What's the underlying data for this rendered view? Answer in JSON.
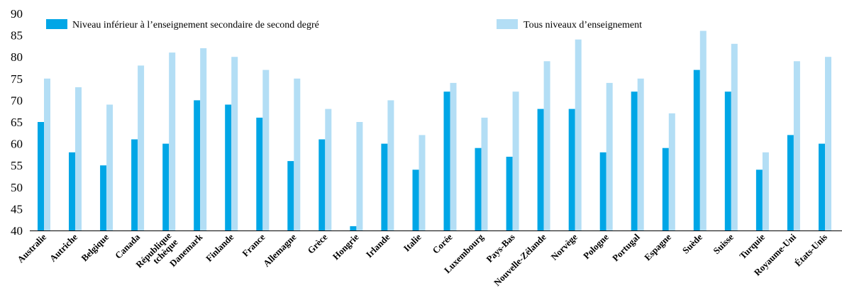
{
  "chart_data": {
    "type": "bar",
    "categories": [
      "Australie",
      "Autriche",
      "Belgique",
      "Canada",
      "République tchèque",
      "Danemark",
      "Finlande",
      "France",
      "Allemagne",
      "Grèce",
      "Hongrie",
      "Irlande",
      "Italie",
      "Corée",
      "Luxembourg",
      "Pays-Bas",
      "Nouvelle-Zélande",
      "Norvège",
      "Pologne",
      "Portugal",
      "Espagne",
      "Suède",
      "Suisse",
      "Turquie",
      "Royaume-Uni",
      "États-Unis"
    ],
    "series": [
      {
        "name": "Niveau inférieur à l’enseignement secondaire de second degré",
        "color": "#00a6e6",
        "values": [
          65,
          58,
          55,
          61,
          60,
          70,
          69,
          66,
          56,
          61,
          41,
          60,
          54,
          72,
          59,
          57,
          68,
          68,
          58,
          72,
          59,
          77,
          72,
          54,
          62,
          60
        ]
      },
      {
        "name": "Tous niveaux d’enseignement",
        "color": "#b3def5",
        "values": [
          75,
          73,
          69,
          78,
          81,
          82,
          80,
          77,
          75,
          68,
          65,
          70,
          62,
          74,
          66,
          72,
          79,
          84,
          74,
          75,
          67,
          86,
          83,
          58,
          79,
          80
        ]
      }
    ],
    "ylim": [
      40,
      90
    ],
    "yticks": [
      40,
      45,
      50,
      55,
      60,
      65,
      70,
      75,
      80,
      85,
      90
    ],
    "grid": false,
    "legend_position": "top"
  }
}
